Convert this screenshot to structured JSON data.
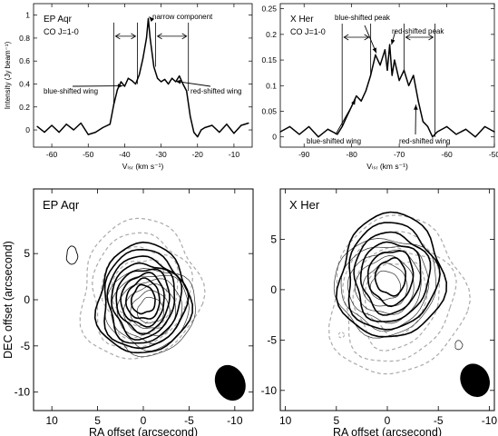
{
  "chart_data": [
    {
      "type": "line",
      "panel": "top-left",
      "title_lines": [
        "EP Aqr",
        "CO J=1-0"
      ],
      "xlabel": "Vₗₛᵣ (km s⁻¹)",
      "ylabel": "Intensity (Jy beam⁻¹)",
      "xlim": [
        -65,
        -5
      ],
      "ylim": [
        -0.15,
        1.1
      ],
      "xticks": [
        -60,
        -50,
        -40,
        -30,
        -20,
        -10
      ],
      "xtick_labels": [
        "-60",
        "-50",
        "-40",
        "-30",
        "-20",
        "-10"
      ],
      "yticks": [
        0,
        0.2,
        0.4,
        0.6,
        0.8,
        1.0
      ],
      "ytick_labels": [
        "0",
        "0.2",
        "0.4",
        "0.6",
        "0.8",
        "1"
      ],
      "x": [
        -64,
        -62,
        -60,
        -58,
        -56,
        -54,
        -52,
        -50,
        -48,
        -46,
        -44,
        -43,
        -42,
        -41,
        -40,
        -39,
        -38,
        -37,
        -36,
        -35,
        -34,
        -33.5,
        -33,
        -32,
        -31,
        -30,
        -29,
        -28,
        -27,
        -26,
        -25,
        -24,
        -23,
        -22,
        -21,
        -20,
        -19,
        -18,
        -16,
        -14,
        -12,
        -10,
        -8,
        -6
      ],
      "y": [
        0.03,
        -0.02,
        0.04,
        -0.02,
        0.05,
        0.0,
        0.06,
        -0.04,
        -0.02,
        0.02,
        0.05,
        0.22,
        0.35,
        0.42,
        0.38,
        0.45,
        0.43,
        0.4,
        0.48,
        0.62,
        0.8,
        0.97,
        0.8,
        0.55,
        0.45,
        0.42,
        0.44,
        0.4,
        0.45,
        0.42,
        0.47,
        0.4,
        0.34,
        0.12,
        -0.02,
        -0.06,
        0.0,
        0.02,
        0.04,
        -0.02,
        0.05,
        -0.03,
        0.04,
        0.06
      ],
      "annotations": [
        "narrow component",
        "blue-shifted wing",
        "red-shifted wing"
      ],
      "vlines": [
        -43,
        -36.5,
        -31.5,
        -22.5
      ],
      "arrows": [
        [
          -43,
          -36.5
        ],
        [
          -31.5,
          -22.5
        ]
      ]
    },
    {
      "type": "line",
      "panel": "top-right",
      "title_lines": [
        "X Her",
        "CO J=1-0"
      ],
      "xlabel": "Vₗₛᵣ (km s⁻¹)",
      "ylabel": "",
      "xlim": [
        -95,
        -50
      ],
      "ylim": [
        -0.02,
        0.26
      ],
      "xticks": [
        -90,
        -80,
        -70,
        -60,
        -50
      ],
      "xtick_labels": [
        "-90",
        "-80",
        "-70",
        "-60",
        "-50"
      ],
      "yticks": [
        0,
        0.05,
        0.1,
        0.15,
        0.2,
        0.25
      ],
      "ytick_labels": [
        "0",
        "0.05",
        "0.1",
        "0.15",
        "0.2",
        "0.25"
      ],
      "x": [
        -95,
        -93,
        -91,
        -89,
        -87,
        -85,
        -83,
        -82,
        -81,
        -80,
        -79,
        -78,
        -77,
        -76,
        -75,
        -74,
        -73,
        -72.5,
        -72,
        -71.5,
        -71,
        -70,
        -69,
        -68,
        -67,
        -66,
        -65,
        -64,
        -63,
        -62,
        -60,
        -58,
        -56,
        -54,
        -52,
        -50
      ],
      "y": [
        0.01,
        0.02,
        0.005,
        0.02,
        0.0,
        0.015,
        0.005,
        0.02,
        0.04,
        0.06,
        0.08,
        0.07,
        0.09,
        0.12,
        0.16,
        0.14,
        0.17,
        0.13,
        0.18,
        0.12,
        0.15,
        0.11,
        0.13,
        0.1,
        0.12,
        0.07,
        0.03,
        0.02,
        0.0,
        0.01,
        0.02,
        0.005,
        0.015,
        0.0,
        0.02,
        0.01
      ],
      "annotations": [
        "blue-shifted peak",
        "red-shifted peak",
        "blue-shifted wing",
        "red-shifted wing"
      ],
      "vlines": [
        -82,
        -76,
        -69,
        -62.5
      ],
      "arrows": [
        [
          -82,
          -76
        ],
        [
          -69,
          -62.5
        ]
      ]
    },
    {
      "type": "contour",
      "panel": "bottom-left",
      "label": "EP Aqr",
      "xlabel": "RA offset (arcsecond)",
      "ylabel": "DEC offset (arcsecond)",
      "xlim": [
        12,
        -12
      ],
      "ylim": [
        -12,
        12
      ],
      "xticks": [
        10,
        5,
        0,
        -5,
        -10
      ],
      "xtick_labels": [
        "10",
        "5",
        "0",
        "-5",
        "-10"
      ],
      "yticks": [
        5,
        0,
        -5,
        -10
      ],
      "ytick_labels": [
        "5",
        "0",
        "-5",
        "-10"
      ],
      "beam": {
        "major_arcsec": 4.0,
        "minor_arcsec": 3.2,
        "center": [
          -9.5,
          -9.0
        ]
      },
      "levels_thick": 8,
      "levels_thin": 6,
      "levels_dashed": 4
    },
    {
      "type": "contour",
      "panel": "bottom-right",
      "label": "X Her",
      "xlabel": "RA offset (arcsecond)",
      "ylabel": "",
      "xlim": [
        10.5,
        -10.5
      ],
      "ylim": [
        -12,
        10
      ],
      "xticks": [
        10,
        5,
        0,
        -5,
        -10
      ],
      "xtick_labels": [
        "10",
        "5",
        "0",
        "-5",
        "-10"
      ],
      "yticks": [
        5,
        0,
        -5,
        -10
      ],
      "ytick_labels": [
        "5",
        "0",
        "-5",
        "-10"
      ],
      "beam": {
        "major_arcsec": 3.4,
        "minor_arcsec": 2.8,
        "center": [
          -8.6,
          -9.0
        ]
      },
      "levels_thick": 6,
      "levels_thin": 6,
      "levels_dashed": 4
    }
  ]
}
